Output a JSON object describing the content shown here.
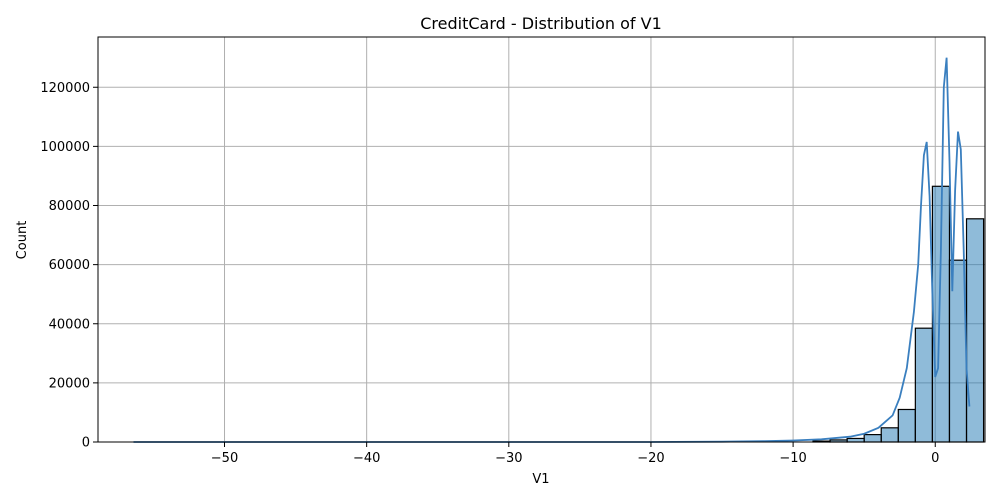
{
  "chart_data": {
    "type": "bar",
    "title": "CreditCard - Distribution of V1",
    "xlabel": "V1",
    "ylabel": "Count",
    "xlim": [
      -58.9,
      3.5
    ],
    "ylim": [
      0,
      137000
    ],
    "grid": true,
    "x_ticks": [
      -50,
      -40,
      -30,
      -20,
      -10,
      0
    ],
    "x_tick_labels": [
      "−50",
      "−40",
      "−30",
      "−20",
      "−10",
      "0"
    ],
    "y_ticks": [
      0,
      20000,
      40000,
      60000,
      80000,
      100000,
      120000
    ],
    "y_tick_labels": [
      "0",
      "20000",
      "40000",
      "60000",
      "80000",
      "100000",
      "120000"
    ],
    "histogram": {
      "bin_width": 1.2,
      "bins": [
        {
          "x0": -8.6,
          "count": 300
        },
        {
          "x0": -7.4,
          "count": 700
        },
        {
          "x0": -6.2,
          "count": 1200
        },
        {
          "x0": -5.0,
          "count": 2500
        },
        {
          "x0": -3.8,
          "count": 4800
        },
        {
          "x0": -2.6,
          "count": 11000
        },
        {
          "x0": -1.4,
          "count": 38500
        },
        {
          "x0": -0.2,
          "count": 86500
        },
        {
          "x0": 1.0,
          "count": 61500
        },
        {
          "x0": 2.2,
          "count": 75500
        }
      ]
    },
    "kde": {
      "x": [
        -56.4,
        -50,
        -40,
        -30,
        -20,
        -15,
        -12,
        -10,
        -8,
        -6,
        -5,
        -4,
        -3,
        -2.5,
        -2,
        -1.5,
        -1.2,
        -1.0,
        -0.8,
        -0.6,
        -0.4,
        -0.2,
        0.0,
        0.2,
        0.4,
        0.6,
        0.8,
        1.0,
        1.2,
        1.4,
        1.6,
        1.8,
        2.0,
        2.2,
        2.4
      ],
      "y": [
        0,
        0,
        0,
        0,
        0,
        100,
        300,
        500,
        900,
        1800,
        2800,
        4800,
        9000,
        15000,
        25000,
        44000,
        60000,
        80000,
        97000,
        101500,
        83000,
        50000,
        22000,
        25000,
        65000,
        120000,
        130000,
        95000,
        51000,
        85000,
        105000,
        99000,
        65000,
        25000,
        12000
      ]
    }
  }
}
